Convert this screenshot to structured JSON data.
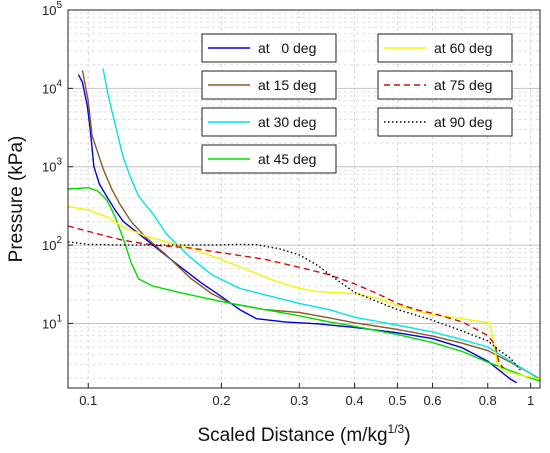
{
  "chart_data": {
    "type": "line",
    "title": "",
    "xlabel": "Scaled Distance (m/kg",
    "xlabel_sup": "1/3",
    "xlabel_close": ")",
    "ylabel": "Pressure (kPa)",
    "xscale": "log",
    "yscale": "log",
    "xlim": [
      0.09,
      1.05
    ],
    "ylim": [
      1.5,
      100000
    ],
    "grid": true,
    "legend_placement": "top-right, two columns",
    "x_ticks": [
      {
        "value": 0.1,
        "label": "0.1"
      },
      {
        "value": 0.2,
        "label": "0.2"
      },
      {
        "value": 0.3,
        "label": "0.3"
      },
      {
        "value": 0.4,
        "label": "0.4"
      },
      {
        "value": 0.5,
        "label": "0.5"
      },
      {
        "value": 0.6,
        "label": "0.6"
      },
      {
        "value": 0.8,
        "label": "0.8"
      },
      {
        "value": 1,
        "label": "1"
      }
    ],
    "y_ticks": [
      {
        "value": 10,
        "base": "10",
        "exp": "1"
      },
      {
        "value": 100,
        "base": "10",
        "exp": "2"
      },
      {
        "value": 1000,
        "base": "10",
        "exp": "3"
      },
      {
        "value": 10000,
        "base": "10",
        "exp": "4"
      },
      {
        "value": 100000,
        "base": "10",
        "exp": "5"
      }
    ],
    "series": [
      {
        "name": "at   0 deg",
        "color": "#0000dd",
        "dash": "solid",
        "points": [
          [
            0.095,
            15000
          ],
          [
            0.097,
            12000
          ],
          [
            0.0995,
            6000
          ],
          [
            0.101,
            3000
          ],
          [
            0.103,
            1000
          ],
          [
            0.106,
            600
          ],
          [
            0.11,
            420
          ],
          [
            0.115,
            280
          ],
          [
            0.12,
            200
          ],
          [
            0.128,
            150
          ],
          [
            0.14,
            100
          ],
          [
            0.16,
            55
          ],
          [
            0.18,
            33
          ],
          [
            0.2,
            22
          ],
          [
            0.22,
            15
          ],
          [
            0.24,
            11.5
          ],
          [
            0.28,
            10.4
          ],
          [
            0.33,
            9.9
          ],
          [
            0.4,
            8.9
          ],
          [
            0.5,
            7.6
          ],
          [
            0.6,
            6.4
          ],
          [
            0.7,
            4.9
          ],
          [
            0.8,
            3.3
          ],
          [
            0.9,
            1.95
          ],
          [
            0.93,
            1.75
          ]
        ]
      },
      {
        "name": "at 15 deg",
        "color": "#8b5a2b",
        "dash": "solid",
        "points": [
          [
            0.097,
            17000
          ],
          [
            0.1,
            7000
          ],
          [
            0.102,
            2500
          ],
          [
            0.104,
            1800
          ],
          [
            0.108,
            950
          ],
          [
            0.113,
            520
          ],
          [
            0.118,
            330
          ],
          [
            0.125,
            200
          ],
          [
            0.135,
            125
          ],
          [
            0.15,
            75
          ],
          [
            0.17,
            38
          ],
          [
            0.19,
            24
          ],
          [
            0.21,
            18
          ],
          [
            0.25,
            15
          ],
          [
            0.3,
            13.8
          ],
          [
            0.35,
            11.8
          ],
          [
            0.4,
            10.2
          ],
          [
            0.5,
            8.4
          ],
          [
            0.6,
            6.9
          ],
          [
            0.7,
            5.6
          ],
          [
            0.8,
            4.5
          ],
          [
            0.9,
            3.2
          ],
          [
            1.0,
            2.3
          ],
          [
            1.05,
            1.95
          ]
        ]
      },
      {
        "name": "at 30 deg",
        "color": "#00e5e5",
        "dash": "solid",
        "points": [
          [
            0.108,
            18000
          ],
          [
            0.111,
            8000
          ],
          [
            0.115,
            3500
          ],
          [
            0.12,
            1300
          ],
          [
            0.125,
            700
          ],
          [
            0.13,
            420
          ],
          [
            0.14,
            250
          ],
          [
            0.15,
            140
          ],
          [
            0.17,
            70
          ],
          [
            0.19,
            42
          ],
          [
            0.22,
            28
          ],
          [
            0.26,
            22
          ],
          [
            0.3,
            18
          ],
          [
            0.35,
            15
          ],
          [
            0.4,
            12
          ],
          [
            0.5,
            9.5
          ],
          [
            0.6,
            7.8
          ],
          [
            0.7,
            6.2
          ],
          [
            0.8,
            5.0
          ],
          [
            0.9,
            3.3
          ],
          [
            1.0,
            2.3
          ],
          [
            1.05,
            1.9
          ]
        ]
      },
      {
        "name": "at 45 deg",
        "color": "#00dd00",
        "dash": "solid",
        "points": [
          [
            0.09,
            520
          ],
          [
            0.1,
            540
          ],
          [
            0.105,
            490
          ],
          [
            0.11,
            380
          ],
          [
            0.115,
            230
          ],
          [
            0.12,
            120
          ],
          [
            0.125,
            60
          ],
          [
            0.13,
            37
          ],
          [
            0.14,
            30
          ],
          [
            0.16,
            25
          ],
          [
            0.2,
            19
          ],
          [
            0.25,
            15
          ],
          [
            0.3,
            12.5
          ],
          [
            0.35,
            10.5
          ],
          [
            0.4,
            9.2
          ],
          [
            0.5,
            7.2
          ],
          [
            0.6,
            5.7
          ],
          [
            0.7,
            4.4
          ],
          [
            0.8,
            3.2
          ],
          [
            0.9,
            2.5
          ],
          [
            1.0,
            2.0
          ],
          [
            1.05,
            1.85
          ]
        ]
      },
      {
        "name": "at 60 deg",
        "color": "#f5f500",
        "dash": "solid",
        "points": [
          [
            0.09,
            310
          ],
          [
            0.1,
            280
          ],
          [
            0.11,
            230
          ],
          [
            0.12,
            170
          ],
          [
            0.135,
            130
          ],
          [
            0.15,
            110
          ],
          [
            0.17,
            92
          ],
          [
            0.2,
            65
          ],
          [
            0.23,
            48
          ],
          [
            0.26,
            36
          ],
          [
            0.3,
            28
          ],
          [
            0.33,
            25.5
          ],
          [
            0.4,
            24
          ],
          [
            0.45,
            21
          ],
          [
            0.5,
            17
          ],
          [
            0.55,
            14.5
          ],
          [
            0.6,
            13
          ],
          [
            0.7,
            11.5
          ],
          [
            0.8,
            10.2
          ],
          [
            0.81,
            10
          ],
          [
            0.84,
            3.2
          ],
          [
            0.86,
            2.5
          ],
          [
            0.95,
            2.2
          ],
          [
            1.05,
            1.95
          ]
        ]
      },
      {
        "name": "at 75 deg",
        "color": "#cc1111",
        "dash": "dashed",
        "points": [
          [
            0.09,
            175
          ],
          [
            0.1,
            150
          ],
          [
            0.11,
            130
          ],
          [
            0.12,
            115
          ],
          [
            0.14,
            100
          ],
          [
            0.17,
            92
          ],
          [
            0.2,
            80
          ],
          [
            0.25,
            66
          ],
          [
            0.3,
            52
          ],
          [
            0.35,
            42
          ],
          [
            0.4,
            32
          ],
          [
            0.45,
            24
          ],
          [
            0.5,
            18
          ],
          [
            0.55,
            15
          ],
          [
            0.6,
            13.5
          ],
          [
            0.7,
            10.5
          ],
          [
            0.8,
            7
          ],
          [
            0.83,
            5.4
          ],
          [
            0.85,
            3.0
          ],
          [
            0.87,
            2.7
          ]
        ]
      },
      {
        "name": "at 90 deg",
        "color": "#000000",
        "dash": "dotted",
        "points": [
          [
            0.09,
            110
          ],
          [
            0.1,
            102
          ],
          [
            0.12,
            100
          ],
          [
            0.15,
            100
          ],
          [
            0.19,
            100
          ],
          [
            0.22,
            102
          ],
          [
            0.24,
            101
          ],
          [
            0.27,
            90
          ],
          [
            0.3,
            75
          ],
          [
            0.33,
            55
          ],
          [
            0.36,
            38
          ],
          [
            0.4,
            25
          ],
          [
            0.45,
            19
          ],
          [
            0.5,
            15
          ],
          [
            0.6,
            11
          ],
          [
            0.7,
            8
          ],
          [
            0.8,
            6
          ],
          [
            0.85,
            4.5
          ],
          [
            0.9,
            3.6
          ],
          [
            0.95,
            2.5
          ]
        ]
      }
    ]
  }
}
